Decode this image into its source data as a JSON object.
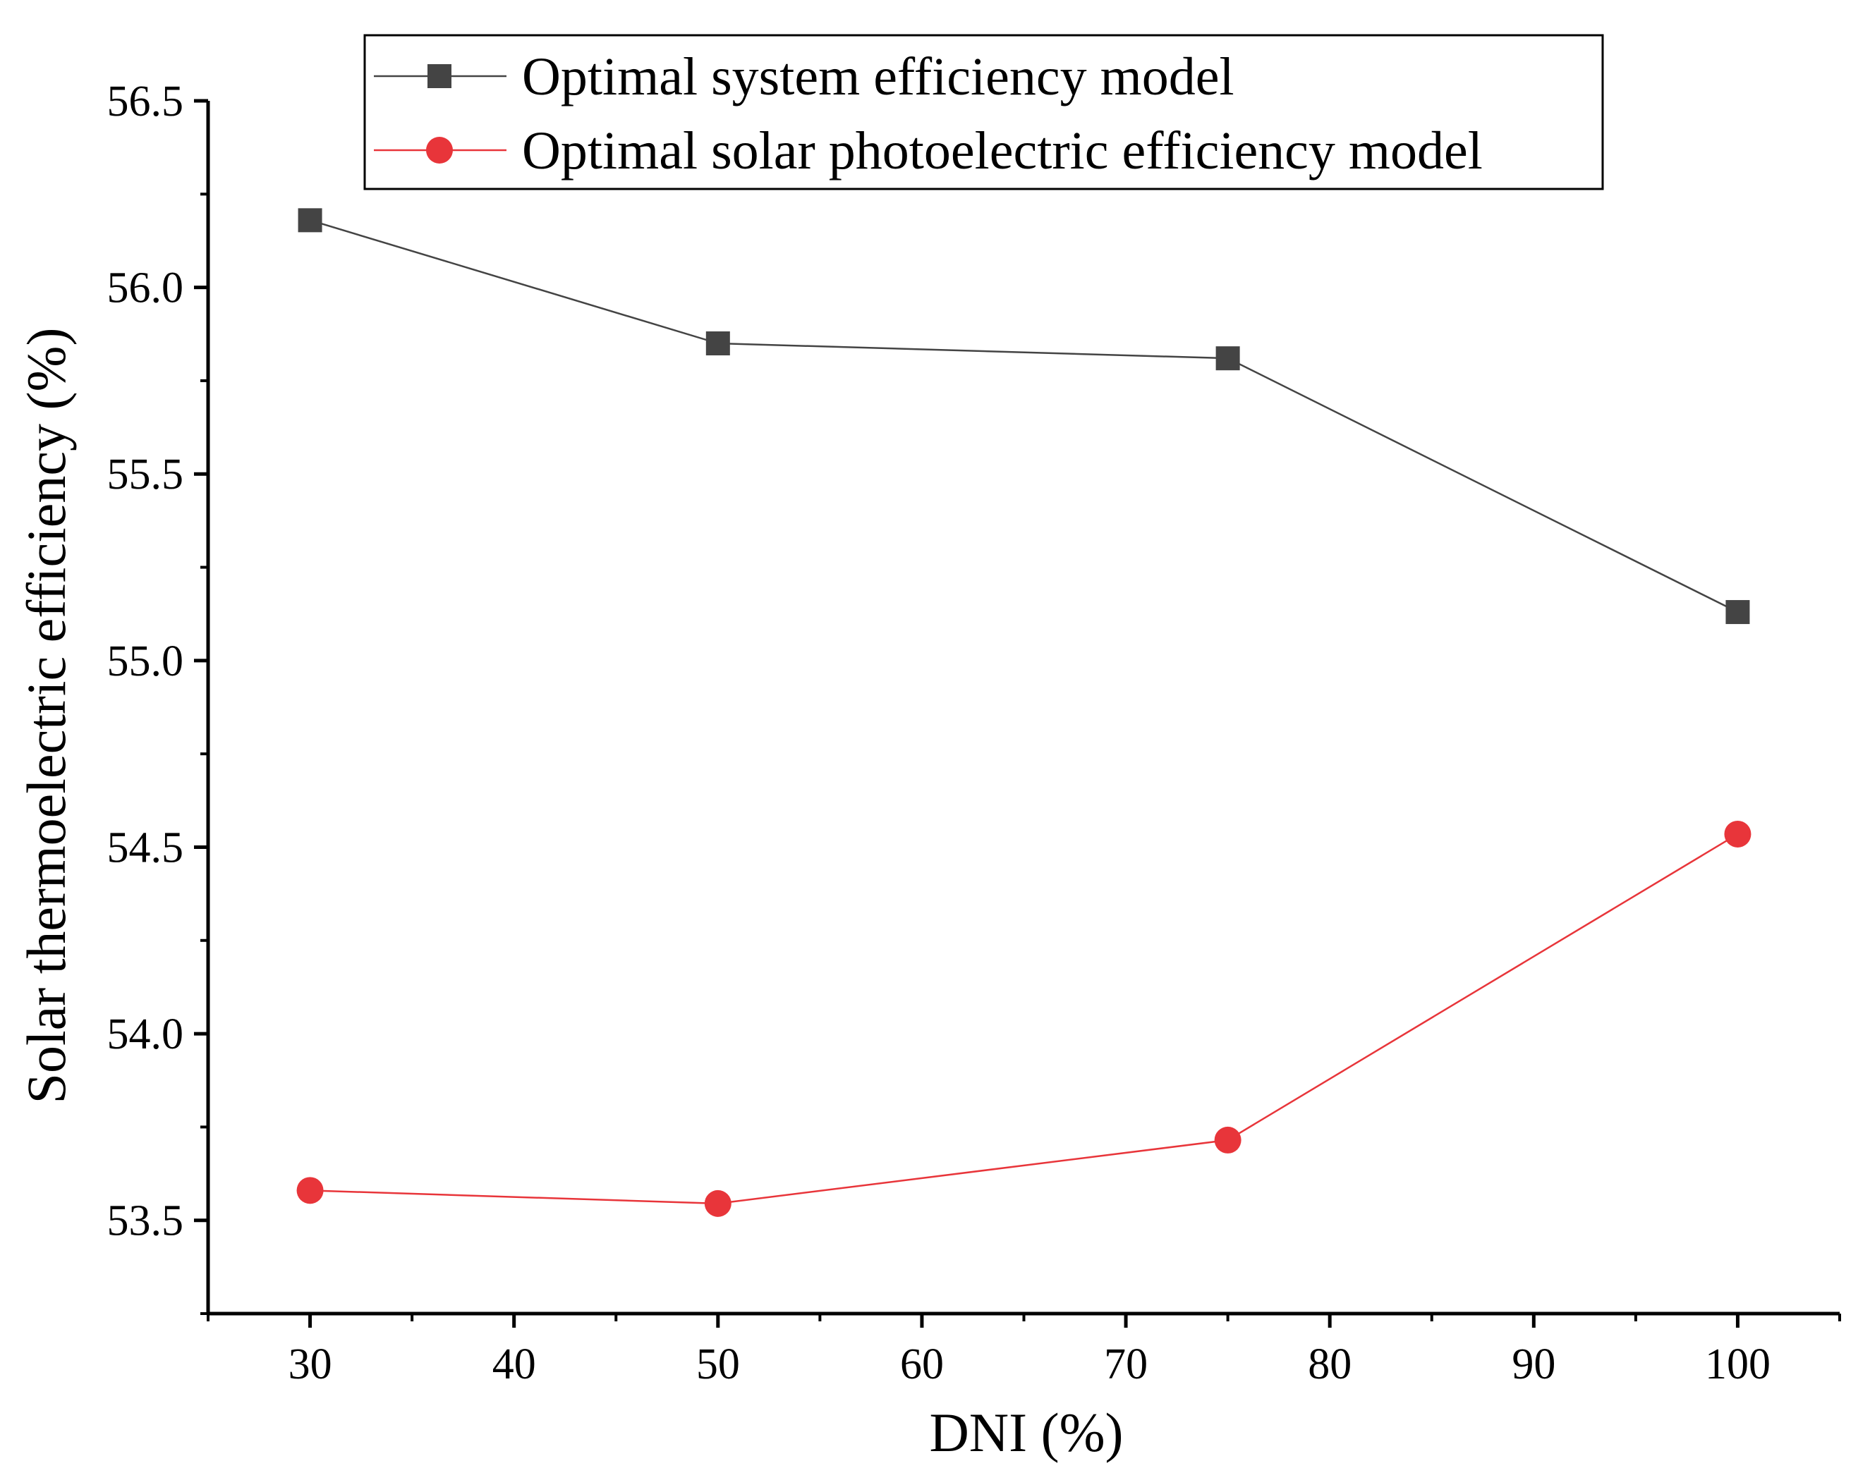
{
  "chart_data": {
    "type": "line",
    "title": "",
    "xlabel": "DNI (%)",
    "ylabel": "Solar thermoelectric efficiency (%)",
    "xlim": [
      25,
      105
    ],
    "ylim": [
      53.25,
      56.5
    ],
    "x_ticks": [
      30,
      40,
      50,
      60,
      70,
      80,
      90,
      100
    ],
    "x_tick_labels": [
      "30",
      "40",
      "50",
      "60",
      "70",
      "80",
      "90",
      "100"
    ],
    "y_ticks": [
      53.5,
      54.0,
      54.5,
      55.0,
      55.5,
      56.0,
      56.5
    ],
    "y_tick_labels": [
      "53.5",
      "54.0",
      "54.5",
      "55.0",
      "55.5",
      "56.0",
      "56.5"
    ],
    "grid": false,
    "legend_position": "top-center",
    "series": [
      {
        "name": "Optimal system efficiency model",
        "marker": "square",
        "color": "#444444",
        "x": [
          30,
          50,
          75,
          100
        ],
        "values": [
          56.18,
          55.85,
          55.81,
          55.13
        ]
      },
      {
        "name": "Optimal solar photoelectric efficiency model",
        "marker": "circle",
        "color": "#e8353a",
        "x": [
          30,
          50,
          75,
          100
        ],
        "values": [
          53.58,
          53.545,
          53.715,
          54.535
        ]
      }
    ]
  }
}
